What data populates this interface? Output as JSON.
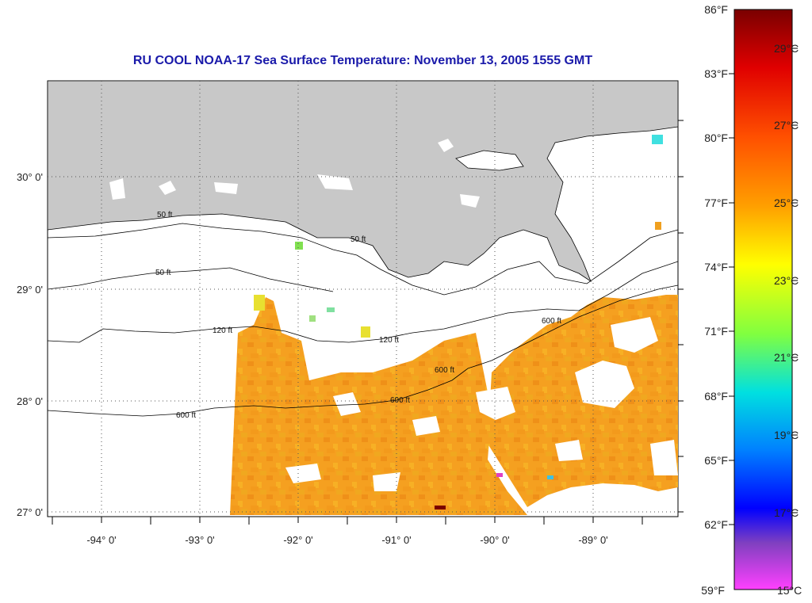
{
  "title": "RU COOL  NOAA-17  Sea Surface Temperature:  November 13, 2005 1555 GMT",
  "map": {
    "longitude_labels": [
      "-94° 0'",
      "-93° 0'",
      "-92° 0'",
      "-91° 0'",
      "-90° 0'",
      "-89° 0'"
    ],
    "latitude_labels": [
      "30° 0'",
      "29° 0'",
      "28° 0'",
      "27° 0'"
    ],
    "contour_labels": [
      "50 ft",
      "120 ft",
      "600 ft"
    ],
    "colors": {
      "land": "#c8c8c8",
      "no_data": "#ffffff",
      "sst_dominant": "#f5a020",
      "sst_warm": "#ef8a18",
      "sst_cool": "#f2c020"
    }
  },
  "colorbar": {
    "fahrenheit_labels": [
      "86°F",
      "83°F",
      "80°F",
      "77°F",
      "74°F",
      "71°F",
      "68°F",
      "65°F",
      "62°F",
      "59°F"
    ],
    "celsius_labels": [
      "29°C",
      "27°C",
      "25°C",
      "23°C",
      "21°C",
      "19°C",
      "17°C",
      "15°C"
    ],
    "gradient_colors": [
      "#7a0000",
      "#ff0000",
      "#ff8000",
      "#ffff00",
      "#80ff40",
      "#00e0e0",
      "#0080ff",
      "#0000ff",
      "#8040c0",
      "#ff40ff"
    ]
  }
}
